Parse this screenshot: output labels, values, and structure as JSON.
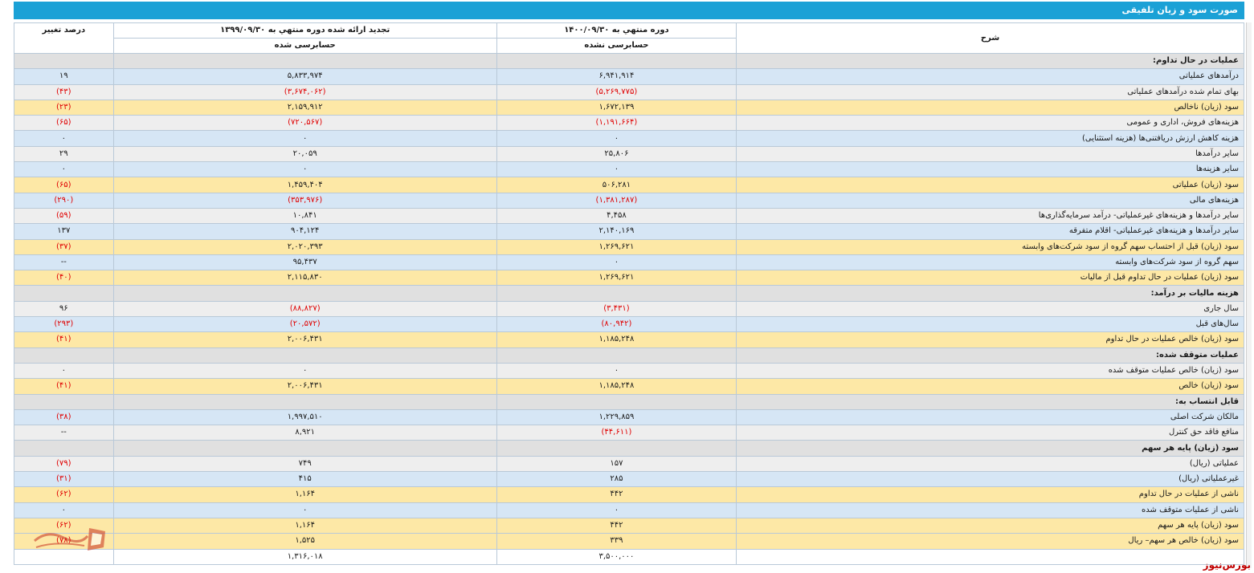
{
  "title": "صورت سود و زیان تلفیقی",
  "headers": {
    "desc": "شرح",
    "current": "دوره منتهي به ۱۴۰۰/۰۹/۳۰",
    "prior": "تجدید ارائه شده دوره منتهي به ۱۳۹۹/۰۹/۳۰",
    "change": "درصد تغییر",
    "current_audit": "حسابرسی نشده",
    "prior_audit": "حسابرسی شده"
  },
  "rows": [
    {
      "type": "sec",
      "desc": "عملیات در حال تداوم:",
      "cur": "",
      "prev": "",
      "chg": ""
    },
    {
      "type": "blue",
      "desc": "درآمدهای عملیاتی",
      "cur": "۶,۹۴۱,۹۱۴",
      "prev": "۵,۸۳۳,۹۷۴",
      "chg": "۱۹"
    },
    {
      "type": "gray",
      "desc": "بهای تمام شده درآمدهای عملیاتی",
      "cur": "(۵,۲۶۹,۷۷۵)",
      "prev": "(۳,۶۷۴,۰۶۲)",
      "chg": "(۴۳)"
    },
    {
      "type": "gold",
      "desc": "سود (زیان) ناخالص",
      "cur": "۱,۶۷۲,۱۳۹",
      "prev": "۲,۱۵۹,۹۱۲",
      "chg": "(۲۳)"
    },
    {
      "type": "gray",
      "desc": "هزینه‌های فروش، اداری و عمومی",
      "cur": "(۱,۱۹۱,۶۶۴)",
      "prev": "(۷۲۰,۵۶۷)",
      "chg": "(۶۵)"
    },
    {
      "type": "blue",
      "desc": "هزینه کاهش ارزش دریافتنی‌ها (هزینه استثنایی)",
      "cur": "۰",
      "prev": "۰",
      "chg": "۰"
    },
    {
      "type": "gray",
      "desc": "سایر درآمدها",
      "cur": "۲۵,۸۰۶",
      "prev": "۲۰,۰۵۹",
      "chg": "۲۹"
    },
    {
      "type": "blue",
      "desc": "سایر هزینه‌ها",
      "cur": "۰",
      "prev": "۰",
      "chg": "۰"
    },
    {
      "type": "gold",
      "desc": "سود (زیان) عملیاتی",
      "cur": "۵۰۶,۲۸۱",
      "prev": "۱,۴۵۹,۴۰۴",
      "chg": "(۶۵)"
    },
    {
      "type": "blue",
      "desc": "هزینه‌های مالی",
      "cur": "(۱,۳۸۱,۲۸۷)",
      "prev": "(۳۵۳,۹۷۶)",
      "chg": "(۲۹۰)"
    },
    {
      "type": "gray",
      "desc": "سایر درآمدها و هزینه‌های غیرعملیاتی- درآمد سرمایه‌گذاری‌ها",
      "cur": "۴,۴۵۸",
      "prev": "۱۰,۸۴۱",
      "chg": "(۵۹)"
    },
    {
      "type": "blue",
      "desc": "سایر درآمدها و هزینه‌های غیرعملیاتی- اقلام متفرقه",
      "cur": "۲,۱۴۰,۱۶۹",
      "prev": "۹۰۴,۱۲۴",
      "chg": "۱۳۷"
    },
    {
      "type": "gold",
      "desc": "سود (زیان) قبل از احتساب سهم گروه از سود شرکت‌های وابسته",
      "cur": "۱,۲۶۹,۶۲۱",
      "prev": "۲,۰۲۰,۳۹۳",
      "chg": "(۳۷)"
    },
    {
      "type": "blue",
      "desc": "سهم گروه از سود شرکت‌های وابسته",
      "cur": "۰",
      "prev": "۹۵,۴۳۷",
      "chg": "--"
    },
    {
      "type": "gold",
      "desc": "سود (زیان) عملیات در حال تداوم قبل از مالیات",
      "cur": "۱,۲۶۹,۶۲۱",
      "prev": "۲,۱۱۵,۸۳۰",
      "chg": "(۴۰)"
    },
    {
      "type": "sec",
      "desc": "هزینه مالیات بر درآمد:",
      "cur": "",
      "prev": "",
      "chg": ""
    },
    {
      "type": "gray",
      "desc": "سال جاری",
      "cur": "(۳,۴۳۱)",
      "prev": "(۸۸,۸۲۷)",
      "chg": "۹۶"
    },
    {
      "type": "blue",
      "desc": "سال‌های قبل",
      "cur": "(۸۰,۹۴۲)",
      "prev": "(۲۰,۵۷۲)",
      "chg": "(۲۹۳)"
    },
    {
      "type": "gold",
      "desc": "سود (زیان) خالص عملیات در حال تداوم",
      "cur": "۱,۱۸۵,۲۴۸",
      "prev": "۲,۰۰۶,۴۳۱",
      "chg": "(۴۱)"
    },
    {
      "type": "sec",
      "desc": "عملیات متوقف شده:",
      "cur": "",
      "prev": "",
      "chg": ""
    },
    {
      "type": "gray",
      "desc": "سود (زیان) خالص عملیات متوقف شده",
      "cur": "۰",
      "prev": "۰",
      "chg": "۰"
    },
    {
      "type": "gold",
      "desc": "سود (زیان) خالص",
      "cur": "۱,۱۸۵,۲۴۸",
      "prev": "۲,۰۰۶,۴۳۱",
      "chg": "(۴۱)"
    },
    {
      "type": "sec",
      "desc": "قابل انتساب به:",
      "cur": "",
      "prev": "",
      "chg": ""
    },
    {
      "type": "blue",
      "desc": "مالکان شرکت اصلی",
      "cur": "۱,۲۲۹,۸۵۹",
      "prev": "۱,۹۹۷,۵۱۰",
      "chg": "(۳۸)"
    },
    {
      "type": "gray",
      "desc": "منافع فاقد حق کنترل",
      "cur": "(۴۴,۶۱۱)",
      "prev": "۸,۹۲۱",
      "chg": "--"
    },
    {
      "type": "sec",
      "desc": "سود (زیان) پایه هر سهم",
      "cur": "",
      "prev": "",
      "chg": ""
    },
    {
      "type": "gray",
      "desc": "عملیاتی (ریال)",
      "cur": "۱۵۷",
      "prev": "۷۴۹",
      "chg": "(۷۹)"
    },
    {
      "type": "blue",
      "desc": "غیرعملیاتی (ریال)",
      "cur": "۲۸۵",
      "prev": "۴۱۵",
      "chg": "(۳۱)"
    },
    {
      "type": "gold",
      "desc": "ناشی از عملیات در حال تداوم",
      "cur": "۴۴۲",
      "prev": "۱,۱۶۴",
      "chg": "(۶۲)"
    },
    {
      "type": "blue",
      "desc": "ناشی از عملیات متوقف شده",
      "cur": "۰",
      "prev": "۰",
      "chg": "۰"
    },
    {
      "type": "gold",
      "desc": "سود (زیان) پایه هر سهم",
      "cur": "۴۴۲",
      "prev": "۱,۱۶۴",
      "chg": "(۶۲)"
    },
    {
      "type": "gold",
      "desc": "سود (زیان) خالص هر سهم– ریال",
      "cur": "۳۳۹",
      "prev": "۱,۵۲۵",
      "chg": "(۷۸)"
    },
    {
      "type": "white",
      "desc": "",
      "cur": "۳,۵۰۰,۰۰۰",
      "prev": "۱,۳۱۶,۰۱۸",
      "chg": ""
    }
  ],
  "brand": "بورس‌نیوز",
  "colors": {
    "title_bar": "#1ba1d6",
    "negative": "#e00000",
    "brand": "#c00000"
  }
}
